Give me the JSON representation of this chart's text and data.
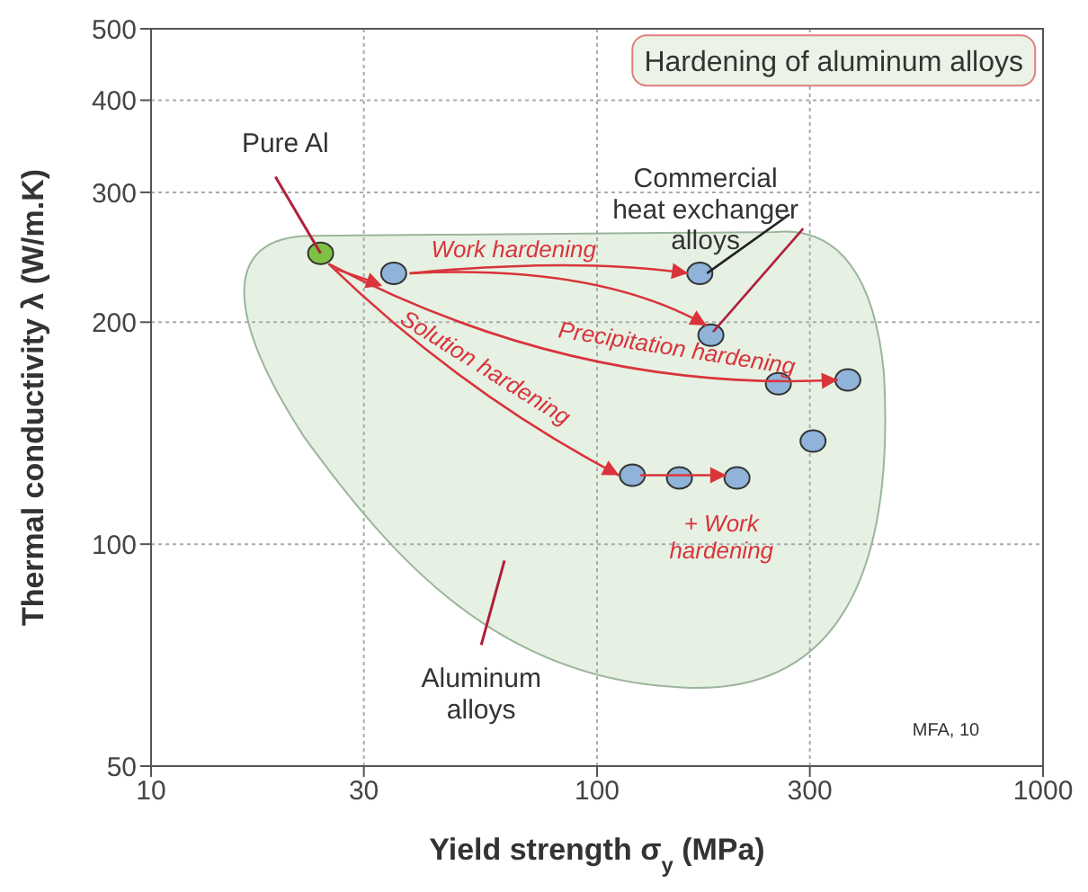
{
  "chart_data": {
    "type": "scatter",
    "title": "Hardening of aluminum alloys",
    "xlabel": "Yield strength σ$_{y}$ (MPa)",
    "ylabel": "Thermal conductivity λ (W/m.K)",
    "x": [
      24,
      35,
      170,
      180,
      255,
      365,
      305,
      120,
      153,
      206
    ],
    "values": [
      248,
      233,
      233,
      192,
      165,
      167,
      138,
      124,
      123,
      123
    ],
    "colors": [
      "#7dc242",
      "#8fb3d9",
      "#8fb3d9",
      "#8fb3d9",
      "#8fb3d9",
      "#8fb3d9",
      "#8fb3d9",
      "#8fb3d9",
      "#8fb3d9",
      "#8fb3d9"
    ],
    "log": "xy",
    "xlim": [
      10,
      1000
    ],
    "xticks": [
      10,
      30,
      100,
      300,
      1000
    ],
    "ylim": [
      50,
      500
    ],
    "yticks": [
      50,
      100,
      200,
      300,
      400,
      500
    ],
    "grid": true,
    "marker": "circle",
    "annotations": [
      {
        "text": "Pure Al",
        "x": 24,
        "y": 248
      },
      {
        "text": "Commercial heat exchanger alloys",
        "x": 170,
        "y": 233
      },
      {
        "text": "Work hardening",
        "x": 160,
        "y": 233
      },
      {
        "text": "Precipitation hardening",
        "x": 365,
        "y": 167
      },
      {
        "text": "Solution hardening",
        "x": 112,
        "y": 124
      },
      {
        "text": "+ Work hardening",
        "x": 195,
        "y": 124
      },
      "Aluminum alloys",
      "MFA, 10"
    ]
  }
}
